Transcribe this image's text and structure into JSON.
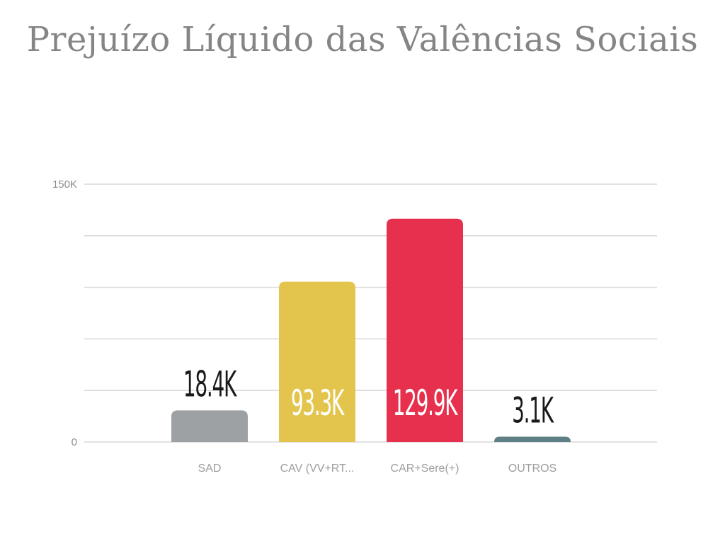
{
  "chart_data": {
    "type": "bar",
    "title": "Prejuízo Líquido das Valências Sociais",
    "xlabel": "",
    "ylabel": "",
    "ylim": [
      0,
      150000
    ],
    "grid": true,
    "y_ticks": [
      {
        "value": 0,
        "label": "0"
      },
      {
        "value": 150000,
        "label": "150K"
      }
    ],
    "gridline_values": [
      0,
      30000,
      60000,
      90000,
      120000,
      150000
    ],
    "categories": [
      "SAD",
      "CAV (VV+RT...",
      "CAR+Sere(+)",
      "OUTROS"
    ],
    "values": [
      18400,
      93300,
      129900,
      3100
    ],
    "data_labels": [
      "18.4K",
      "93.3K",
      "129.9K",
      "3.1K"
    ],
    "colors": [
      "#9da1a4",
      "#e3c54d",
      "#e6304e",
      "#5f7f86"
    ],
    "label_colors": [
      "#1a1a1a",
      "#ffffff",
      "#ffffff",
      "#1a1a1a"
    ],
    "legend": "none"
  }
}
